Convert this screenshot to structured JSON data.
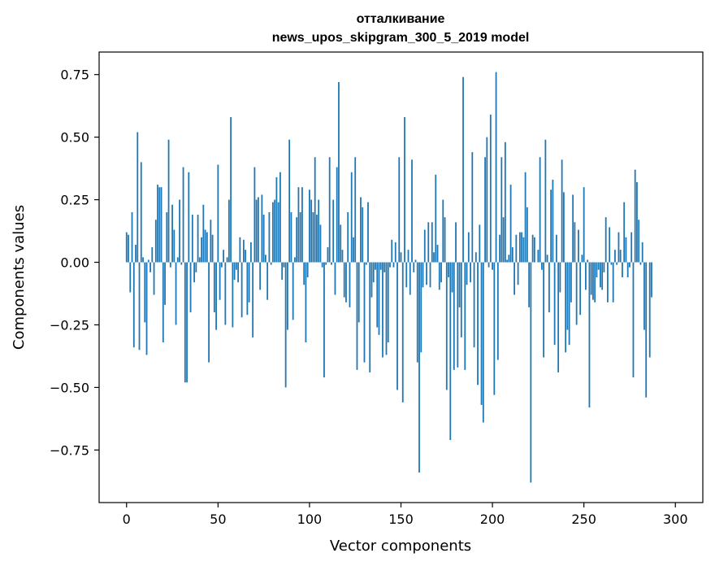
{
  "chart_data": {
    "type": "bar",
    "title": "отталкивание",
    "subtitle": "news_upos_skipgram_300_5_2019 model",
    "xlabel": "Vector components",
    "ylabel": "Components values",
    "xlim": [
      -15,
      315
    ],
    "ylim": [
      -0.96,
      0.84
    ],
    "xticks": [
      0,
      50,
      100,
      150,
      200,
      250,
      300
    ],
    "xtick_labels": [
      "0",
      "50",
      "100",
      "150",
      "200",
      "250",
      "300"
    ],
    "yticks": [
      -0.75,
      -0.5,
      -0.25,
      0.0,
      0.25,
      0.5,
      0.75
    ],
    "ytick_labels": [
      "−0.75",
      "−0.50",
      "−0.25",
      "0.00",
      "0.25",
      "0.50",
      "0.75"
    ],
    "bar_color": "#1f77b4",
    "grid": false,
    "legend": "none",
    "values": [
      0.12,
      0.11,
      -0.12,
      0.2,
      -0.34,
      0.07,
      0.52,
      -0.35,
      0.4,
      0.02,
      -0.24,
      -0.37,
      0.01,
      -0.04,
      0.06,
      -0.13,
      0.17,
      0.31,
      0.3,
      0.3,
      -0.32,
      -0.17,
      0.2,
      0.49,
      -0.02,
      0.23,
      0.13,
      -0.25,
      0.02,
      0.25,
      -0.01,
      0.38,
      -0.48,
      -0.48,
      0.36,
      -0.2,
      0.19,
      -0.08,
      -0.04,
      0.19,
      0.02,
      0.1,
      0.23,
      0.13,
      0.12,
      -0.4,
      0.17,
      0.11,
      -0.2,
      -0.27,
      0.39,
      -0.15,
      -0.02,
      0.05,
      -0.25,
      0.02,
      0.25,
      0.58,
      -0.26,
      -0.07,
      -0.03,
      -0.08,
      0.1,
      -0.22,
      0.09,
      0.05,
      -0.21,
      -0.16,
      0.08,
      -0.3,
      0.38,
      0.25,
      0.26,
      -0.11,
      0.27,
      0.19,
      0.03,
      -0.15,
      0.2,
      -0.01,
      0.24,
      0.25,
      0.34,
      0.24,
      0.36,
      -0.07,
      -0.02,
      -0.5,
      -0.27,
      0.49,
      0.2,
      -0.23,
      0.02,
      0.18,
      0.3,
      0.2,
      0.3,
      -0.09,
      -0.32,
      -0.06,
      0.29,
      0.25,
      0.2,
      0.42,
      0.19,
      0.25,
      0.15,
      -0.02,
      -0.46,
      -0.01,
      0.06,
      0.42,
      -0.01,
      0.25,
      -0.13,
      0.38,
      0.72,
      0.15,
      0.05,
      -0.14,
      -0.16,
      0.2,
      -0.18,
      0.36,
      0.1,
      0.42,
      -0.43,
      -0.24,
      0.26,
      0.22,
      -0.4,
      -0.01,
      0.24,
      -0.44,
      -0.14,
      -0.08,
      -0.03,
      -0.26,
      -0.29,
      -0.03,
      -0.38,
      -0.04,
      -0.37,
      -0.32,
      -0.02,
      0.09,
      -0.02,
      0.08,
      -0.51,
      0.42,
      0.04,
      -0.56,
      0.58,
      -0.1,
      0.05,
      -0.13,
      0.41,
      -0.04,
      0.01,
      -0.4,
      -0.84,
      -0.36,
      -0.1,
      0.13,
      -0.09,
      0.16,
      -0.1,
      0.16,
      0.04,
      0.35,
      0.07,
      -0.11,
      -0.08,
      0.25,
      0.18,
      -0.51,
      -0.06,
      -0.71,
      -0.12,
      -0.43,
      0.16,
      -0.42,
      -0.18,
      -0.3,
      0.74,
      -0.43,
      -0.09,
      0.12,
      -0.08,
      0.44,
      -0.34,
      0.04,
      -0.49,
      0.15,
      -0.57,
      -0.64,
      0.42,
      0.5,
      -0.02,
      0.59,
      -0.03,
      -0.53,
      0.76,
      -0.39,
      0.11,
      0.42,
      0.18,
      0.48,
      0.01,
      0.03,
      0.31,
      0.06,
      -0.13,
      0.11,
      -0.09,
      0.12,
      0.12,
      0.1,
      0.36,
      0.22,
      -0.18,
      -0.88,
      0.11,
      0.1,
      0.0,
      0.05,
      0.42,
      -0.03,
      -0.38,
      0.49,
      0.03,
      -0.2,
      0.29,
      0.33,
      -0.33,
      0.11,
      -0.44,
      -0.12,
      0.41,
      0.28,
      -0.36,
      -0.27,
      -0.33,
      -0.16,
      0.27,
      0.16,
      -0.25,
      0.13,
      -0.21,
      0.03,
      0.3,
      -0.11,
      0.01,
      -0.58,
      -0.13,
      -0.15,
      -0.16,
      -0.06,
      -0.03,
      -0.1,
      -0.11,
      -0.04,
      0.18,
      -0.16,
      0.14,
      -0.01,
      -0.16,
      0.05,
      -0.01,
      0.12,
      0.05,
      -0.06,
      0.24,
      0.1,
      -0.06,
      -0.02,
      0.12,
      -0.46,
      0.37,
      0.32,
      0.17,
      -0.01,
      0.08,
      -0.27,
      -0.54,
      0.0,
      -0.38,
      -0.14
    ]
  }
}
